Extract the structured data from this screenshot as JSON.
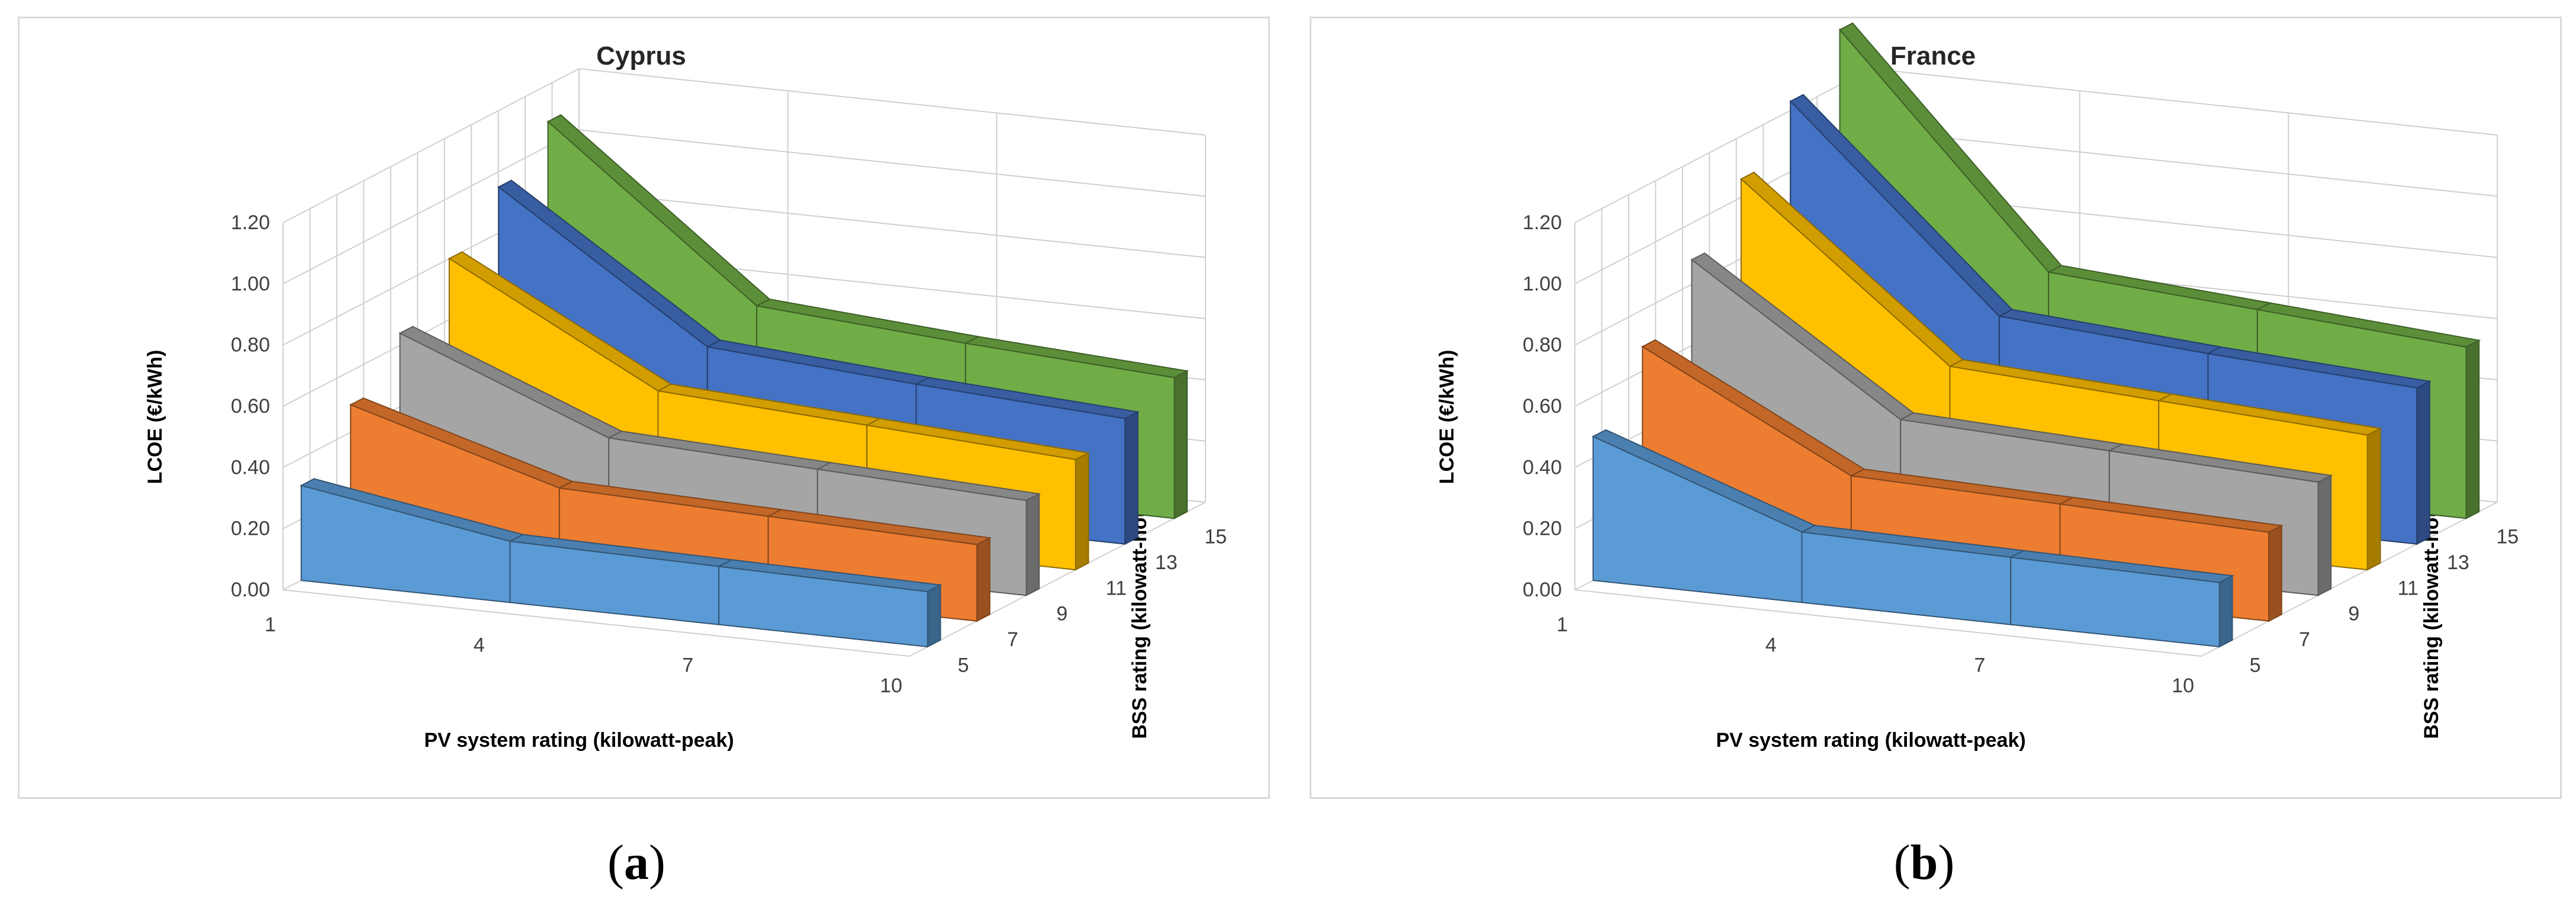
{
  "figure": {
    "caption_a_letter": "a",
    "caption_b_letter": "b"
  },
  "chart_data": [
    {
      "type": "bar3d-ribbon",
      "title": "Cyprus",
      "xlabel": "PV system rating (kilowatt-peak)",
      "ylabel": "LCOE (€/kWh)",
      "zlabel": "BSS rating (kilowatt-hour)",
      "x": [
        "1",
        "4",
        "7",
        "10"
      ],
      "yticks": [
        "0.00",
        "0.20",
        "0.40",
        "0.60",
        "0.80",
        "1.00",
        "1.20"
      ],
      "ylim": [
        0,
        1.2
      ],
      "series": [
        {
          "name": "5",
          "color": "#5b9bd5",
          "values": [
            0.31,
            0.2,
            0.19,
            0.18
          ]
        },
        {
          "name": "7",
          "color": "#ed7d31",
          "values": [
            0.49,
            0.29,
            0.27,
            0.25
          ]
        },
        {
          "name": "9",
          "color": "#a5a5a5",
          "values": [
            0.64,
            0.37,
            0.34,
            0.31
          ]
        },
        {
          "name": "11",
          "color": "#ffc000",
          "values": [
            0.8,
            0.44,
            0.4,
            0.36
          ]
        },
        {
          "name": "13",
          "color": "#4472c4",
          "values": [
            0.95,
            0.5,
            0.45,
            0.41
          ]
        },
        {
          "name": "15",
          "color": "#70ad47",
          "values": [
            1.08,
            0.55,
            0.5,
            0.46
          ]
        }
      ]
    },
    {
      "type": "bar3d-ribbon",
      "title": "France",
      "xlabel": "PV system rating (kilowatt-peak)",
      "ylabel": "LCOE (€/kWh)",
      "zlabel": "BSS rating (kilowatt-hour)",
      "x": [
        "1",
        "4",
        "7",
        "10"
      ],
      "yticks": [
        "0.00",
        "0.20",
        "0.40",
        "0.60",
        "0.80",
        "1.00",
        "1.20"
      ],
      "ylim": [
        0,
        1.2
      ],
      "series": [
        {
          "name": "5",
          "color": "#5b9bd5",
          "values": [
            0.47,
            0.23,
            0.22,
            0.21
          ]
        },
        {
          "name": "7",
          "color": "#ed7d31",
          "values": [
            0.68,
            0.33,
            0.31,
            0.29
          ]
        },
        {
          "name": "9",
          "color": "#a5a5a5",
          "values": [
            0.88,
            0.43,
            0.4,
            0.37
          ]
        },
        {
          "name": "11",
          "color": "#ffc000",
          "values": [
            1.06,
            0.52,
            0.48,
            0.44
          ]
        },
        {
          "name": "13",
          "color": "#4472c4",
          "values": [
            1.23,
            0.6,
            0.55,
            0.51
          ]
        },
        {
          "name": "15",
          "color": "#70ad47",
          "values": [
            1.38,
            0.66,
            0.61,
            0.56
          ]
        }
      ]
    }
  ]
}
